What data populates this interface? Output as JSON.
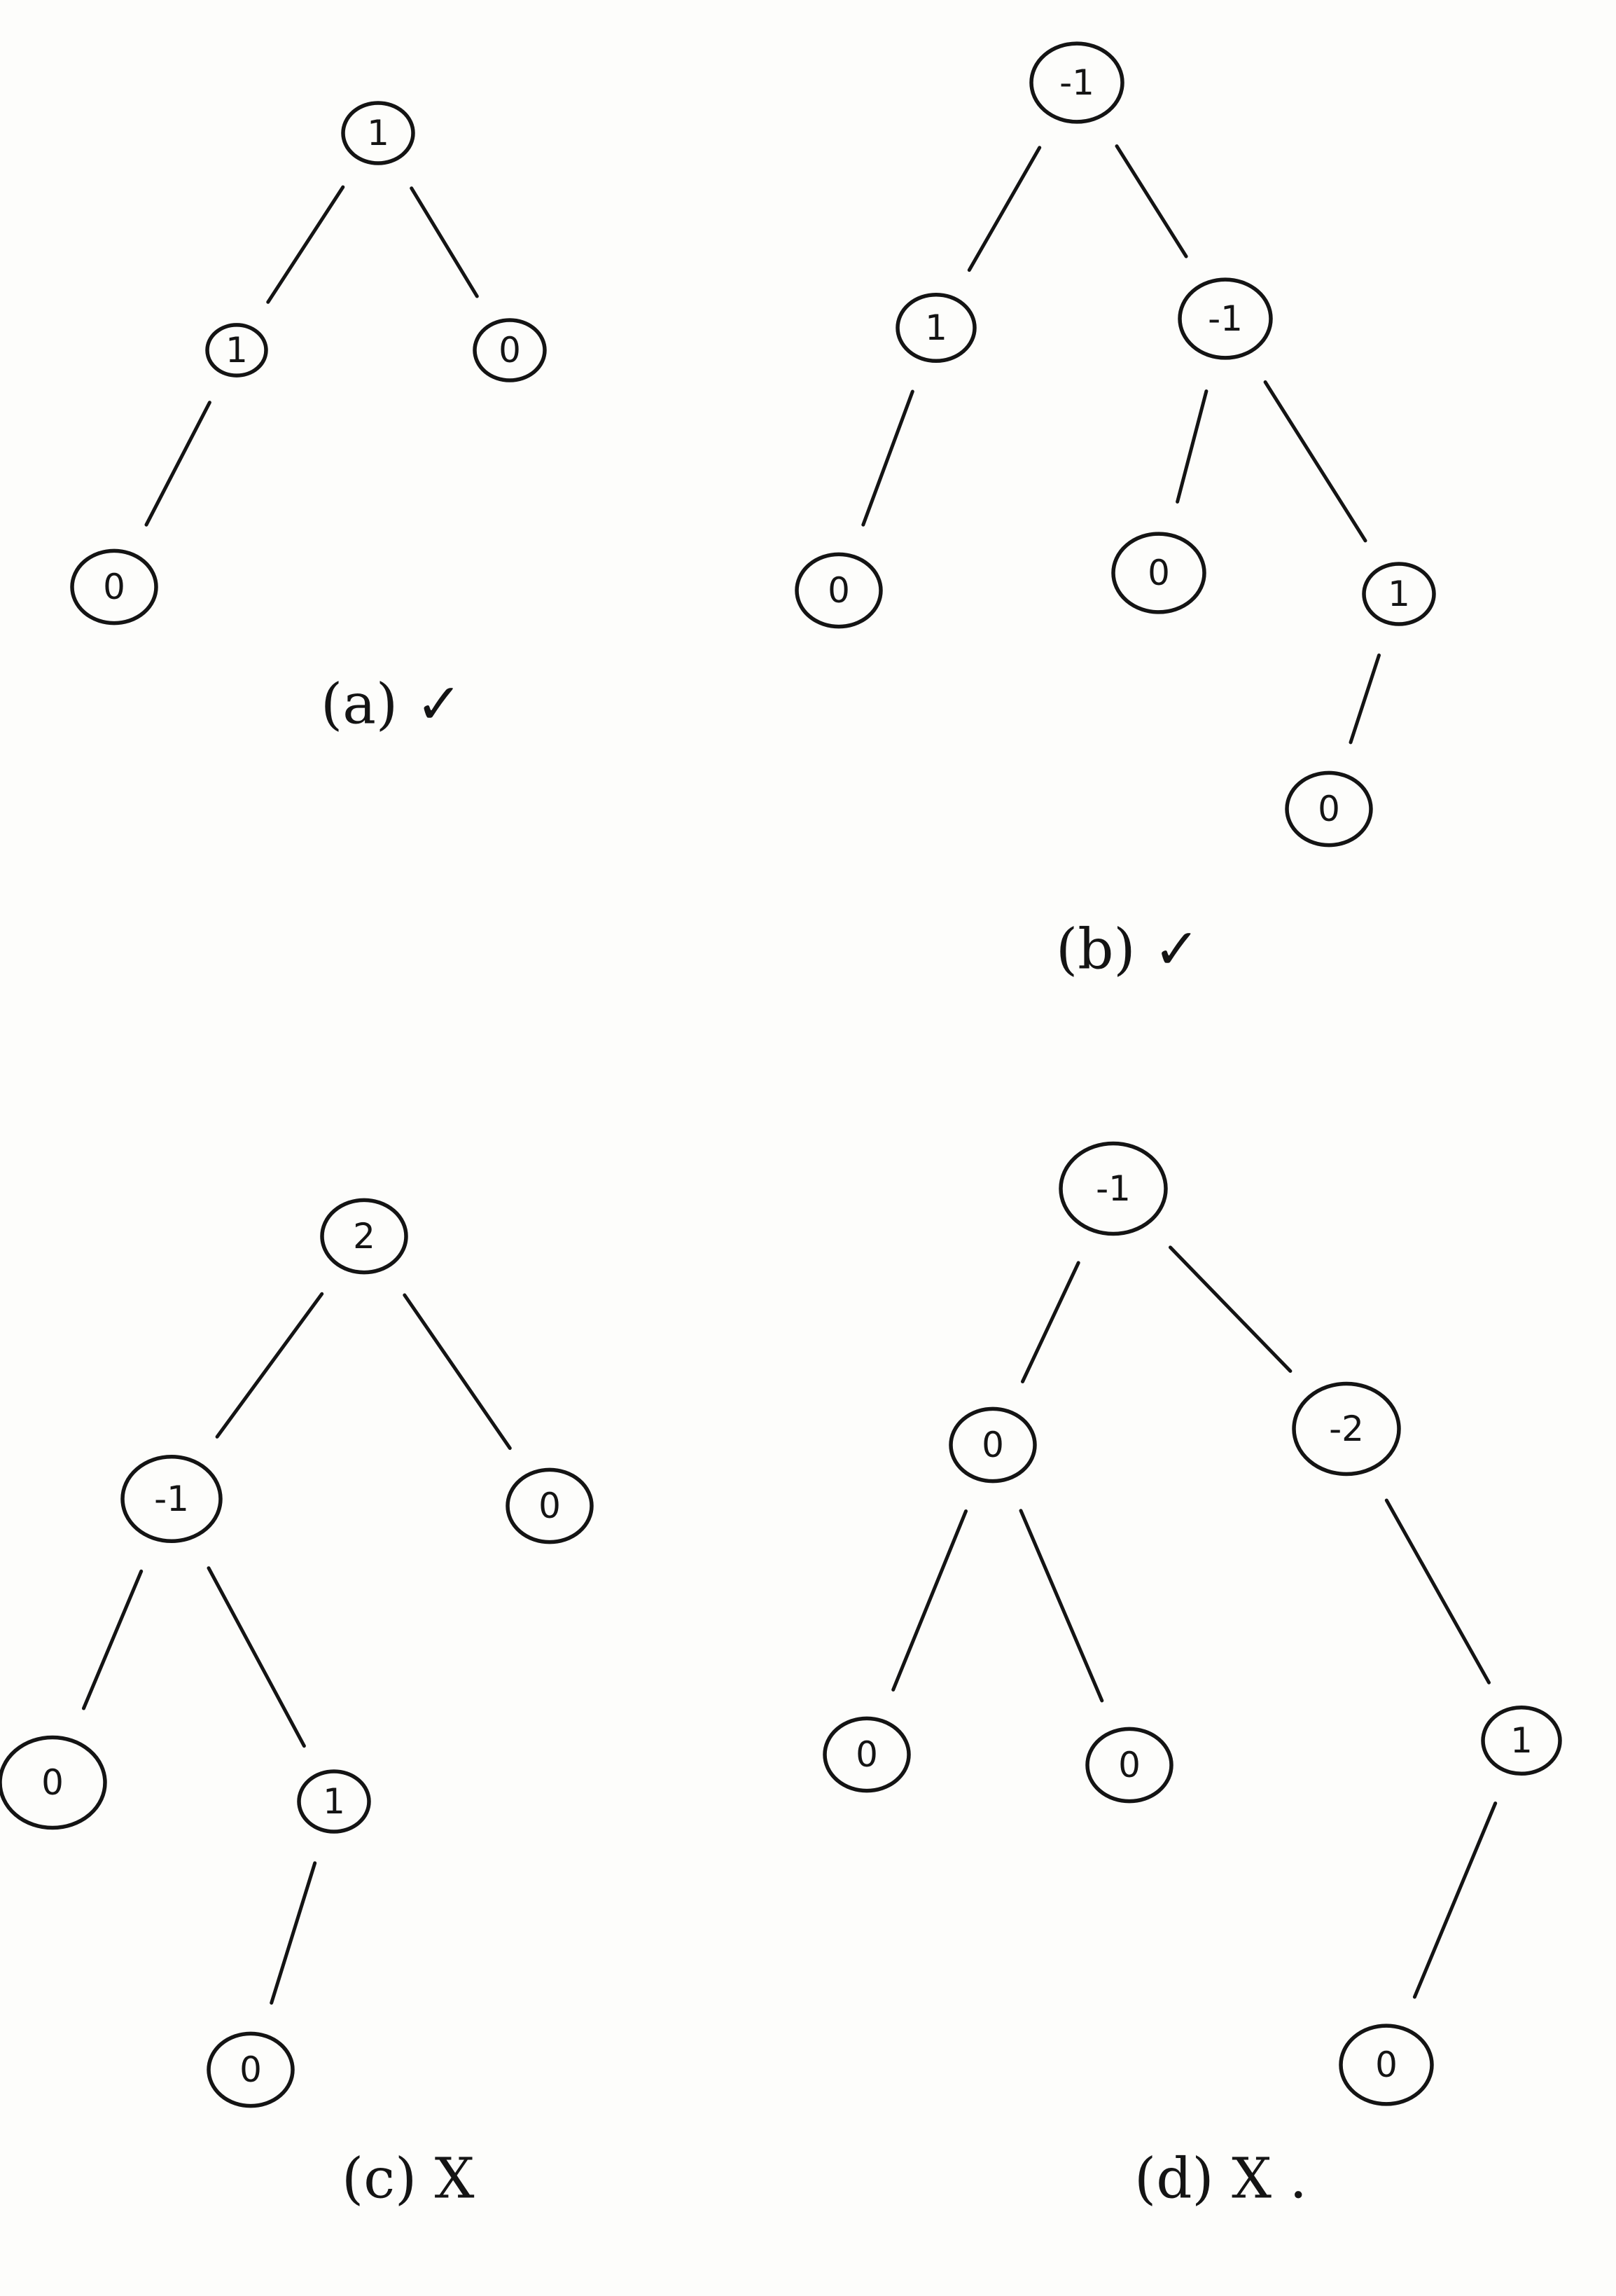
{
  "diagrams": [
    {
      "id": "a",
      "caption": "(a) ✓",
      "nodes": [
        {
          "id": "a-root",
          "label": "1"
        },
        {
          "id": "a-l",
          "label": "1"
        },
        {
          "id": "a-r",
          "label": "0"
        },
        {
          "id": "a-ll",
          "label": "0"
        }
      ],
      "edges": [
        [
          "a-root",
          "a-l"
        ],
        [
          "a-root",
          "a-r"
        ],
        [
          "a-l",
          "a-ll"
        ]
      ]
    },
    {
      "id": "b",
      "caption": "(b) ✓",
      "nodes": [
        {
          "id": "b-root",
          "label": "-1"
        },
        {
          "id": "b-l",
          "label": "1"
        },
        {
          "id": "b-r",
          "label": "-1"
        },
        {
          "id": "b-ll",
          "label": "0"
        },
        {
          "id": "b-rl",
          "label": "0"
        },
        {
          "id": "b-rr",
          "label": "1"
        },
        {
          "id": "b-rrl",
          "label": "0"
        }
      ],
      "edges": [
        [
          "b-root",
          "b-l"
        ],
        [
          "b-root",
          "b-r"
        ],
        [
          "b-l",
          "b-ll"
        ],
        [
          "b-r",
          "b-rl"
        ],
        [
          "b-r",
          "b-rr"
        ],
        [
          "b-rr",
          "b-rrl"
        ]
      ]
    },
    {
      "id": "c",
      "caption": "(c) X",
      "nodes": [
        {
          "id": "c-root",
          "label": "2"
        },
        {
          "id": "c-l",
          "label": "-1"
        },
        {
          "id": "c-r",
          "label": "0"
        },
        {
          "id": "c-ll",
          "label": "0"
        },
        {
          "id": "c-lr",
          "label": "1"
        },
        {
          "id": "c-lrl",
          "label": "0"
        }
      ],
      "edges": [
        [
          "c-root",
          "c-l"
        ],
        [
          "c-root",
          "c-r"
        ],
        [
          "c-l",
          "c-ll"
        ],
        [
          "c-l",
          "c-lr"
        ],
        [
          "c-lr",
          "c-lrl"
        ]
      ]
    },
    {
      "id": "d",
      "caption": "(d) X .",
      "nodes": [
        {
          "id": "d-root",
          "label": "-1"
        },
        {
          "id": "d-l",
          "label": "0"
        },
        {
          "id": "d-r",
          "label": "-2"
        },
        {
          "id": "d-ll",
          "label": "0"
        },
        {
          "id": "d-lr",
          "label": "0"
        },
        {
          "id": "d-rr",
          "label": "1"
        },
        {
          "id": "d-rrl",
          "label": "0"
        }
      ],
      "edges": [
        [
          "d-root",
          "d-l"
        ],
        [
          "d-root",
          "d-r"
        ],
        [
          "d-l",
          "d-ll"
        ],
        [
          "d-l",
          "d-lr"
        ],
        [
          "d-r",
          "d-rr"
        ],
        [
          "d-rr",
          "d-rrl"
        ]
      ]
    }
  ]
}
